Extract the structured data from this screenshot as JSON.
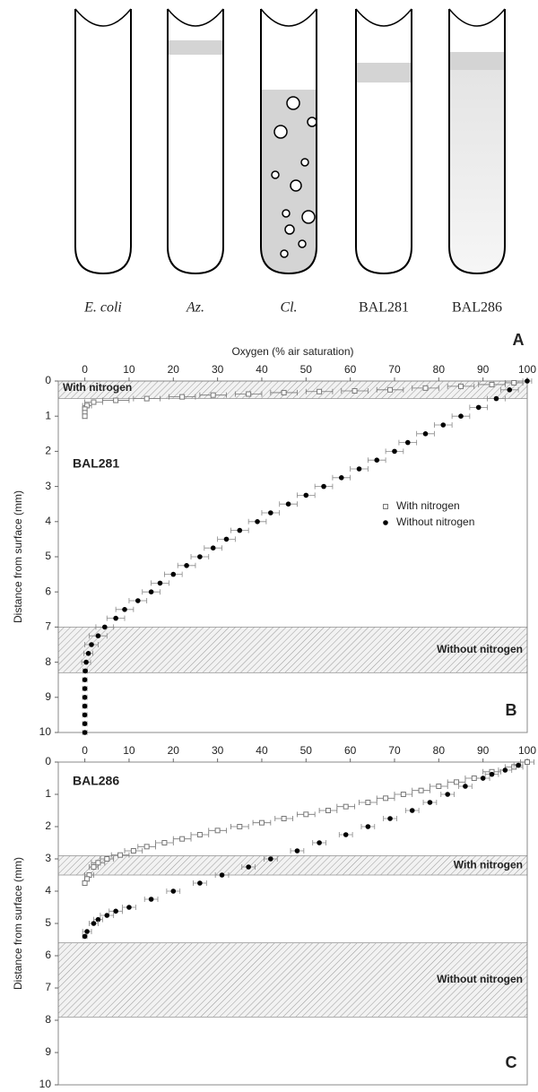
{
  "panel_a": {
    "tubes": [
      {
        "label": "E. coli",
        "italic": true,
        "fill": "none"
      },
      {
        "label": "Az.",
        "italic": true,
        "fill": "band-high"
      },
      {
        "label": "Cl.",
        "italic": true,
        "fill": "bubbles"
      },
      {
        "label": "BAL281",
        "italic": false,
        "fill": "band-mid"
      },
      {
        "label": "BAL286",
        "italic": false,
        "fill": "gradient"
      }
    ],
    "letter": "A"
  },
  "chart_data": [
    {
      "type": "scatter",
      "letter": "B",
      "label": "BAL281",
      "xlabel": "Oxygen (% air saturation)",
      "ylabel": "Distance from surface (mm)",
      "xlim": [
        -6,
        100
      ],
      "xticks": [
        0,
        10,
        20,
        30,
        40,
        50,
        60,
        70,
        80,
        90,
        100
      ],
      "ylim": [
        10,
        0
      ],
      "yticks": [
        0,
        1,
        2,
        3,
        4,
        5,
        6,
        7,
        8,
        9,
        10
      ],
      "legend": "right",
      "bands": [
        {
          "label": "With nitrogen",
          "from": 0,
          "to": 0.5
        },
        {
          "label": "Without nitrogen",
          "from": 7,
          "to": 8.3
        }
      ],
      "series": [
        {
          "name": "With nitrogen",
          "color": "#777777",
          "marker": "square",
          "x": [
            97,
            92,
            85,
            77,
            69,
            61,
            53,
            45,
            37,
            29,
            22,
            14,
            7,
            2,
            0.5,
            0,
            0,
            0
          ],
          "values": [
            0.05,
            0.1,
            0.15,
            0.2,
            0.25,
            0.28,
            0.3,
            0.33,
            0.37,
            0.4,
            0.45,
            0.5,
            0.55,
            0.6,
            0.7,
            0.8,
            0.9,
            1.0
          ],
          "xerr": [
            2,
            3,
            3,
            3,
            3,
            3,
            3,
            3,
            3,
            3,
            3,
            3,
            3,
            2,
            1,
            0.5,
            0.5,
            0.5
          ]
        },
        {
          "name": "Without nitrogen",
          "color": "#000000",
          "marker": "circle",
          "x": [
            100,
            96,
            93,
            89,
            85,
            81,
            77,
            73,
            70,
            66,
            62,
            58,
            54,
            50,
            46,
            42,
            39,
            35,
            32,
            29,
            26,
            23,
            20,
            17,
            15,
            12,
            9,
            7,
            4.5,
            3,
            1.5,
            0.8,
            0.3,
            0.1,
            0,
            0,
            0,
            0,
            0,
            0,
            0
          ],
          "values": [
            0,
            0.25,
            0.5,
            0.75,
            1,
            1.25,
            1.5,
            1.75,
            2,
            2.25,
            2.5,
            2.75,
            3,
            3.25,
            3.5,
            3.75,
            4,
            4.25,
            4.5,
            4.75,
            5,
            5.25,
            5.5,
            5.75,
            6,
            6.25,
            6.5,
            6.75,
            7,
            7.25,
            7.5,
            7.75,
            8,
            8.25,
            8.5,
            8.75,
            9,
            9.25,
            9.5,
            9.75,
            10
          ],
          "xerr": [
            1,
            2,
            2,
            2,
            2,
            2,
            2,
            2,
            2,
            2,
            2,
            2,
            2,
            2,
            2,
            2,
            2,
            2,
            2,
            2,
            2,
            2,
            2,
            2,
            2,
            2,
            2,
            2,
            2,
            2,
            1.5,
            1,
            1,
            0.5,
            0.5,
            0.5,
            0.5,
            0.5,
            0.5,
            0.5,
            0.5
          ]
        }
      ]
    },
    {
      "type": "scatter",
      "letter": "C",
      "label": "BAL286",
      "ylabel": "Distance from surface (mm)",
      "xlim": [
        -6,
        100
      ],
      "xticks": [
        0,
        10,
        20,
        30,
        40,
        50,
        60,
        70,
        80,
        90,
        100
      ],
      "ylim": [
        10,
        0
      ],
      "yticks": [
        0,
        1,
        2,
        3,
        4,
        5,
        6,
        7,
        8,
        9,
        10
      ],
      "bands": [
        {
          "label": "With nitrogen",
          "from": 2.9,
          "to": 3.5
        },
        {
          "label": "Without nitrogen",
          "from": 5.6,
          "to": 7.9
        }
      ],
      "series": [
        {
          "color": "#777777",
          "marker": "square",
          "x": [
            100,
            97,
            92,
            88,
            84,
            80,
            76,
            72,
            68,
            64,
            59,
            55,
            50,
            45,
            40,
            35,
            30,
            26,
            22,
            18,
            14,
            11,
            8,
            5,
            3,
            2,
            1,
            0.5,
            0
          ],
          "values": [
            0,
            0.15,
            0.3,
            0.5,
            0.62,
            0.75,
            0.88,
            1,
            1.12,
            1.25,
            1.38,
            1.5,
            1.62,
            1.75,
            1.88,
            2,
            2.12,
            2.25,
            2.38,
            2.5,
            2.62,
            2.75,
            2.88,
            3,
            3.12,
            3.25,
            3.5,
            3.62,
            3.75
          ],
          "xerr": [
            1.5,
            2,
            2,
            2,
            2,
            2,
            2,
            2,
            2,
            2,
            2,
            2,
            2,
            2,
            2,
            2,
            2,
            2,
            2,
            2,
            2,
            2,
            2,
            1.5,
            1.5,
            1,
            1,
            0.5,
            0.5
          ]
        },
        {
          "color": "#000000",
          "marker": "circle",
          "x": [
            98,
            95,
            92,
            90,
            86,
            82,
            78,
            74,
            69,
            64,
            59,
            53,
            48,
            42,
            37,
            31,
            26,
            20,
            15,
            10,
            7,
            5,
            3,
            2,
            0.5,
            0
          ],
          "values": [
            0.1,
            0.25,
            0.38,
            0.5,
            0.75,
            1,
            1.25,
            1.5,
            1.75,
            2,
            2.25,
            2.5,
            2.75,
            3,
            3.25,
            3.5,
            3.75,
            4,
            4.25,
            4.5,
            4.62,
            4.75,
            4.88,
            5,
            5.25,
            5.4
          ],
          "xerr": [
            1,
            1.5,
            1.5,
            1.5,
            1.5,
            1.5,
            1.5,
            1.5,
            1.5,
            1.5,
            1.5,
            1.5,
            1.5,
            1.5,
            1.5,
            1.5,
            1.5,
            1.5,
            1.5,
            1.5,
            1.5,
            1.5,
            1,
            1,
            1,
            0.5
          ]
        }
      ]
    }
  ]
}
